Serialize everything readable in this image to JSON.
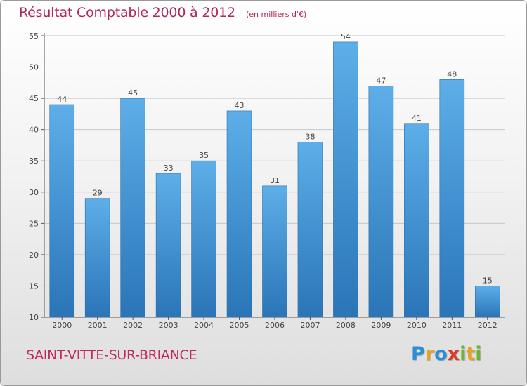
{
  "header": {
    "title": "Résultat Comptable 2000 à 2012",
    "subtitle": "(en milliers d'€)"
  },
  "footer": {
    "town": "SAINT-VITTE-SUR-BRIANCE",
    "brand": "Proxiti",
    "brand_letters": [
      {
        "ch": "P",
        "color": "#2a8fd6"
      },
      {
        "ch": "r",
        "color": "#e8a21c"
      },
      {
        "ch": "o",
        "color": "#2a8fd6"
      },
      {
        "ch": "x",
        "color": "#d93a2b"
      },
      {
        "ch": "i",
        "color": "#6bb533"
      },
      {
        "ch": "t",
        "color": "#e8a21c"
      },
      {
        "ch": "i",
        "color": "#6bb533"
      }
    ]
  },
  "colors": {
    "bar_top": "#5daee9",
    "bar_bottom": "#2a75b7",
    "title": "#b0265a",
    "axis_text": "#444444",
    "grid": "#c8c8c8"
  },
  "chart_data": {
    "type": "bar",
    "title": "Résultat Comptable 2000 à 2012",
    "subtitle": "(en milliers d'€)",
    "xlabel": "",
    "ylabel": "",
    "categories": [
      "2000",
      "2001",
      "2002",
      "2003",
      "2004",
      "2005",
      "2006",
      "2007",
      "2008",
      "2009",
      "2010",
      "2011",
      "2012"
    ],
    "values": [
      44,
      29,
      45,
      33,
      35,
      43,
      31,
      38,
      54,
      47,
      41,
      48,
      15
    ],
    "ylim": [
      10,
      55
    ],
    "yticks": [
      10,
      15,
      20,
      25,
      30,
      35,
      40,
      45,
      50,
      55
    ],
    "grid": true,
    "legend": "none"
  }
}
